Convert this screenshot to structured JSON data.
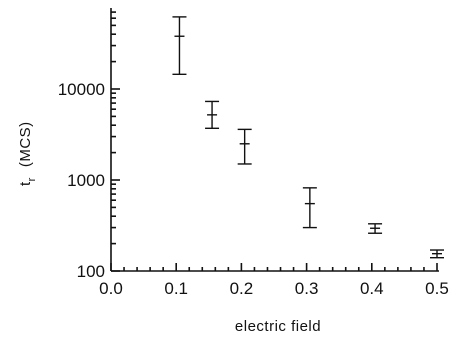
{
  "chart_data": {
    "type": "scatter",
    "title": "",
    "xlabel": "electric field",
    "ylabel": {
      "main": "t",
      "subscript": "r",
      "unit": "(MCS)"
    },
    "xlim": [
      0.0,
      0.5
    ],
    "ylim": [
      100,
      70000
    ],
    "yscale": "log",
    "grid": false,
    "x_ticks": [
      0.0,
      0.1,
      0.2,
      0.3,
      0.4,
      0.5
    ],
    "x_tick_labels": [
      "0.0",
      "0.1",
      "0.2",
      "0.3",
      "0.4",
      "0.5"
    ],
    "y_ticks": [
      100,
      1000,
      10000
    ],
    "y_tick_labels": [
      "100",
      "1000",
      "10000"
    ],
    "points": [
      {
        "x": 0.105,
        "y": 38000,
        "y_low": 14500,
        "y_high": 62000
      },
      {
        "x": 0.155,
        "y": 5200,
        "y_low": 3700,
        "y_high": 7300
      },
      {
        "x": 0.205,
        "y": 2500,
        "y_low": 1500,
        "y_high": 3600
      },
      {
        "x": 0.305,
        "y": 550,
        "y_low": 300,
        "y_high": 820
      },
      {
        "x": 0.405,
        "y": 295,
        "y_low": 260,
        "y_high": 330
      },
      {
        "x": 0.5,
        "y": 155,
        "y_low": 140,
        "y_high": 170
      }
    ]
  }
}
